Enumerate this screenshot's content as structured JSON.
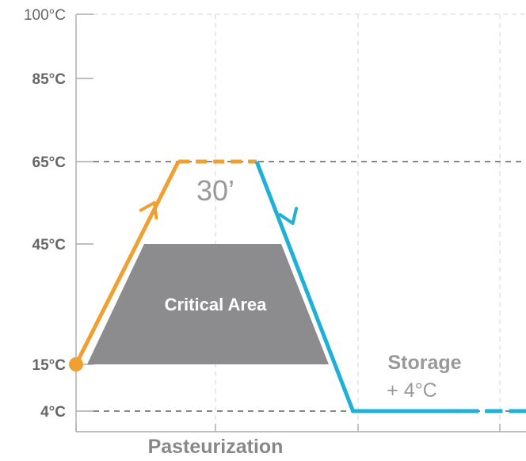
{
  "chart_data": {
    "type": "line",
    "xlabel": "Pasteurization",
    "ylabel": "",
    "y_ticks": [
      {
        "value": 100,
        "label": "100°C",
        "bold": false
      },
      {
        "value": 85,
        "label": "85°C",
        "bold": true
      },
      {
        "value": 65,
        "label": "65°C",
        "bold": true
      },
      {
        "value": 45,
        "label": "45°C",
        "bold": true
      },
      {
        "value": 15,
        "label": "15°C",
        "bold": true
      },
      {
        "value": 4,
        "label": "4°C",
        "bold": true
      }
    ],
    "grid": true,
    "reference_lines": [
      65,
      4
    ],
    "series": [
      {
        "color": "#f0a030",
        "points": [
          [
            0,
            15
          ],
          [
            1.7,
            65
          ]
        ],
        "dashed_segment": [
          [
            1.7,
            65
          ],
          [
            3.0,
            65
          ]
        ],
        "arrow_at": [
          1.3,
          55
        ]
      },
      {
        "color": "#1fb0d8",
        "points": [
          [
            3.0,
            65
          ],
          [
            4.6,
            4
          ],
          [
            6.4,
            4
          ]
        ],
        "dashed_segment": [
          [
            6.4,
            4
          ],
          [
            8.0,
            4
          ]
        ],
        "arrow_at": [
          3.6,
          50
        ]
      }
    ],
    "annotations": {
      "hold_time": "30’",
      "critical_area": "Critical Area",
      "critical_area_range": [
        15,
        45
      ],
      "storage_title": "Storage",
      "storage_temp": "+ 4°C"
    },
    "colors": {
      "heating": "#f0a030",
      "cooling": "#1fb0d8",
      "critical_area": "#8c8c8e",
      "axis": "#aaaaaa",
      "grid": "#dddddd",
      "reference": "#888888"
    }
  }
}
